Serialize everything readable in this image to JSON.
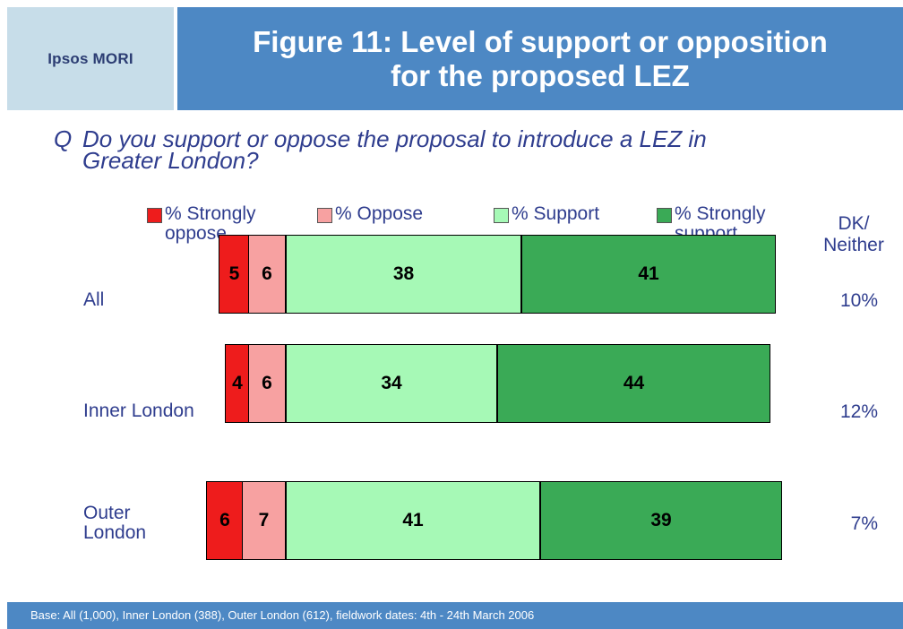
{
  "header": {
    "logo_text": "Ipsos MORI",
    "title_line1": "Figure 11: Level of support or opposition",
    "title_line2": "for the proposed LEZ"
  },
  "question": {
    "marker": "Q",
    "text_line1": "Do you support or oppose the proposal to introduce a LEZ in",
    "text_line2": "Greater London?"
  },
  "dk_header": {
    "line1": "DK/",
    "line2": "Neither"
  },
  "footer": {
    "text": "Base: All (1,000), Inner London (388), Outer London (612), fieldwork dates: 4th - 24th  March 2006"
  },
  "chart_data": {
    "type": "bar",
    "orientation": "horizontal",
    "stacked": true,
    "categories": [
      "All",
      "Inner London",
      "Outer London"
    ],
    "series": [
      {
        "name": "% Strongly oppose",
        "values": [
          5,
          4,
          6
        ],
        "color": "#ee1c1c"
      },
      {
        "name": "% Oppose",
        "values": [
          6,
          6,
          7
        ],
        "color": "#f7a1a1"
      },
      {
        "name": "% Support",
        "values": [
          38,
          34,
          41
        ],
        "color": "#a6f9b6"
      },
      {
        "name": "% Strongly support",
        "values": [
          41,
          44,
          39
        ],
        "color": "#3aaa56"
      }
    ],
    "dk_neither": [
      "10%",
      "12%",
      "7%"
    ],
    "legend_position": "top",
    "grid": false
  }
}
